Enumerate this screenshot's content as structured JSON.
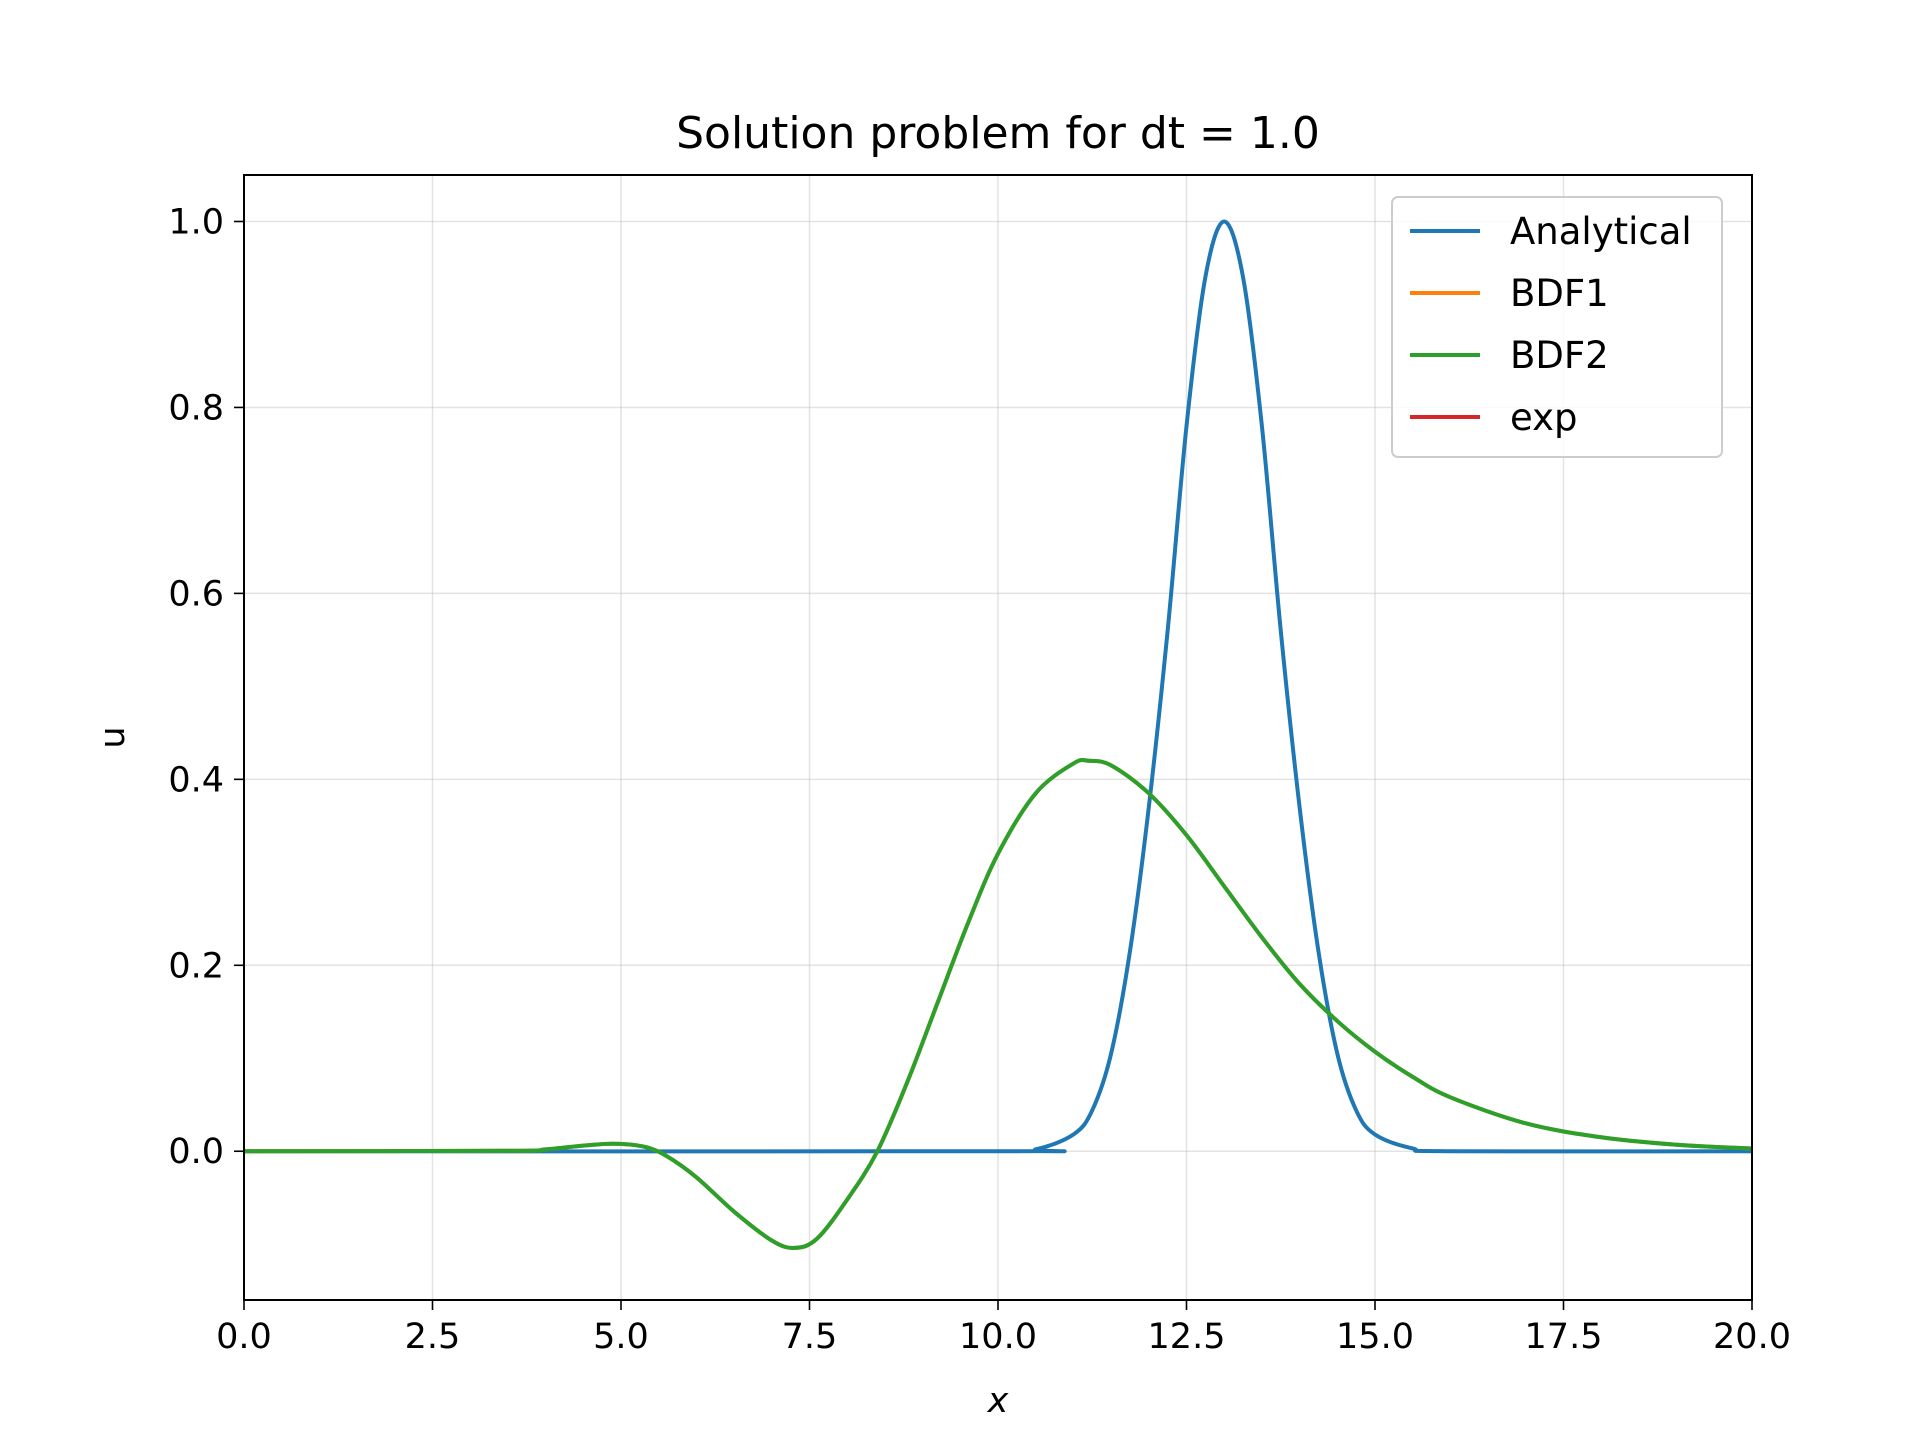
{
  "chart_data": {
    "type": "line",
    "title": "Solution problem for dt = 1.0",
    "xlabel": "x",
    "ylabel": "u",
    "xlim": [
      0,
      20
    ],
    "ylim": [
      -0.16,
      1.05
    ],
    "grid": true,
    "legend_position": "top-right",
    "x_ticks": [
      0,
      2.5,
      5,
      7.5,
      10,
      12.5,
      15,
      17.5,
      20
    ],
    "x_tick_labels": [
      "0.0",
      "2.5",
      "5.0",
      "7.5",
      "10.0",
      "12.5",
      "15.0",
      "17.5",
      "20.0"
    ],
    "y_ticks": [
      0,
      0.2,
      0.4,
      0.6,
      0.8,
      1.0
    ],
    "y_tick_labels": [
      "0.0",
      "0.2",
      "0.4",
      "0.6",
      "0.8",
      "1.0"
    ],
    "series": [
      {
        "name": "Analytical",
        "color": "#1f77b4",
        "x": [
          0,
          10,
          10.5,
          11,
          11.25,
          11.5,
          11.75,
          12,
          12.25,
          12.5,
          12.75,
          13,
          13.25,
          13.5,
          13.75,
          14,
          14.25,
          14.5,
          14.75,
          15,
          15.5,
          16,
          20
        ],
        "y": [
          0,
          0,
          0.002,
          0.018,
          0.044,
          0.105,
          0.215,
          0.37,
          0.56,
          0.78,
          0.94,
          1.0,
          0.94,
          0.78,
          0.56,
          0.37,
          0.215,
          0.105,
          0.044,
          0.018,
          0.003,
          0,
          0
        ]
      },
      {
        "name": "BDF1",
        "color": "#ff7f0e",
        "x": [
          0,
          3.5,
          4.0,
          4.5,
          4.9,
          5.3,
          5.6,
          6.0,
          6.5,
          7.0,
          7.3,
          7.6,
          8.0,
          8.4,
          8.8,
          9.2,
          9.6,
          10.0,
          10.5,
          11.0,
          11.2,
          11.5,
          12.0,
          12.5,
          13.0,
          13.5,
          14.0,
          14.5,
          15.0,
          15.5,
          16.0,
          17.0,
          18.0,
          19.0,
          20.0
        ],
        "y": [
          0,
          0.0005,
          0.002,
          0.006,
          0.008,
          0.005,
          -0.005,
          -0.028,
          -0.065,
          -0.096,
          -0.104,
          -0.094,
          -0.052,
          0.0,
          0.075,
          0.16,
          0.245,
          0.32,
          0.385,
          0.417,
          0.42,
          0.415,
          0.385,
          0.34,
          0.285,
          0.23,
          0.18,
          0.14,
          0.107,
          0.08,
          0.058,
          0.03,
          0.015,
          0.007,
          0.003
        ]
      },
      {
        "name": "BDF2",
        "color": "#2ca02c",
        "x": [
          0,
          3.5,
          4.0,
          4.5,
          4.9,
          5.3,
          5.6,
          6.0,
          6.5,
          7.0,
          7.3,
          7.6,
          8.0,
          8.4,
          8.8,
          9.2,
          9.6,
          10.0,
          10.5,
          11.0,
          11.2,
          11.5,
          12.0,
          12.5,
          13.0,
          13.5,
          14.0,
          14.5,
          15.0,
          15.5,
          16.0,
          17.0,
          18.0,
          19.0,
          20.0
        ],
        "y": [
          0,
          0.0005,
          0.002,
          0.006,
          0.008,
          0.005,
          -0.005,
          -0.028,
          -0.065,
          -0.096,
          -0.104,
          -0.094,
          -0.052,
          0.0,
          0.075,
          0.16,
          0.245,
          0.32,
          0.385,
          0.417,
          0.42,
          0.415,
          0.385,
          0.34,
          0.285,
          0.23,
          0.18,
          0.14,
          0.107,
          0.08,
          0.058,
          0.03,
          0.015,
          0.007,
          0.003
        ]
      },
      {
        "name": "exp",
        "color": "#d62728",
        "x": [],
        "y": []
      }
    ]
  }
}
